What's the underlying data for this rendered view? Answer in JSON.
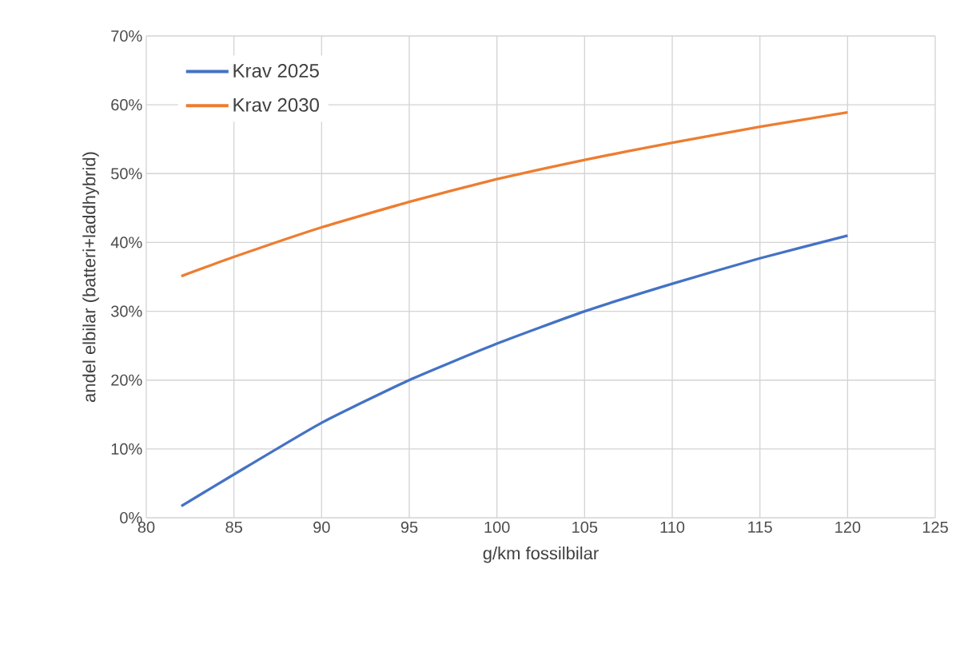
{
  "chart_data": {
    "type": "line",
    "xlabel": "g/km fossilbilar",
    "ylabel": "andel elbilar (batteri+laddhybrid)",
    "x": [
      82,
      85,
      90,
      95,
      100,
      105,
      110,
      115,
      120
    ],
    "series": [
      {
        "name": "Krav 2025",
        "color": "#4472c4",
        "values": [
          1.7,
          6.3,
          13.8,
          20,
          25.3,
          30,
          34,
          37.7,
          41
        ]
      },
      {
        "name": "Krav 2030",
        "color": "#ed7d31",
        "values": [
          35.1,
          37.9,
          42.2,
          45.9,
          49.2,
          52,
          54.5,
          56.8,
          58.9
        ]
      }
    ],
    "xlim": [
      80,
      125
    ],
    "xticks": [
      80,
      85,
      90,
      95,
      100,
      105,
      110,
      115,
      120,
      125
    ],
    "ylim": [
      0,
      70
    ],
    "yticks": [
      {
        "value": 0,
        "label": "0%"
      },
      {
        "value": 10,
        "label": "10%"
      },
      {
        "value": 20,
        "label": "20%"
      },
      {
        "value": 30,
        "label": "30%"
      },
      {
        "value": 40,
        "label": "40%"
      },
      {
        "value": 50,
        "label": "50%"
      },
      {
        "value": 60,
        "label": "60%"
      },
      {
        "value": 70,
        "label": "70%"
      }
    ],
    "grid": true,
    "legend": "top left",
    "marker": "none",
    "line_style": "solid"
  }
}
